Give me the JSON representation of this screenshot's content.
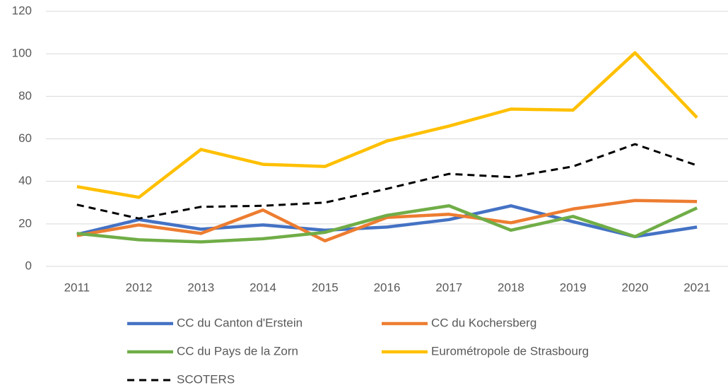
{
  "chart_data": {
    "type": "line",
    "categories": [
      "2011",
      "2012",
      "2013",
      "2014",
      "2015",
      "2016",
      "2017",
      "2018",
      "2019",
      "2020",
      "2021"
    ],
    "series": [
      {
        "name": "CC du Canton d'Erstein",
        "color": "#4472c4",
        "values": [
          15,
          22,
          17.5,
          19.5,
          17,
          18.5,
          22,
          28.5,
          21,
          14,
          18.5
        ]
      },
      {
        "name": "CC du Kochersberg",
        "color": "#ed7d31",
        "values": [
          14.5,
          19.5,
          15.5,
          26.5,
          12,
          23,
          24.5,
          20.5,
          27,
          31,
          30.5
        ]
      },
      {
        "name": "CC du Pays de la Zorn",
        "color": "#70ad47",
        "values": [
          15.5,
          12.5,
          11.5,
          13,
          16,
          24,
          28.5,
          17,
          23.5,
          14,
          27.5
        ]
      },
      {
        "name": "Eurométropole de Strasbourg",
        "color": "#ffc000",
        "values": [
          37.5,
          32.5,
          55,
          48,
          47,
          59,
          66,
          74,
          73.5,
          100.5,
          70
        ]
      },
      {
        "name": "SCOTERS",
        "color": "#000000",
        "line_style": "dashed",
        "values": [
          29,
          22.5,
          28,
          28.5,
          30,
          36.5,
          43.5,
          42,
          47,
          57.5,
          47.5
        ]
      }
    ],
    "ylim": [
      0,
      120
    ],
    "yticks": [
      0,
      20,
      40,
      60,
      80,
      100,
      120
    ],
    "grid": true,
    "legend": "bottom"
  }
}
